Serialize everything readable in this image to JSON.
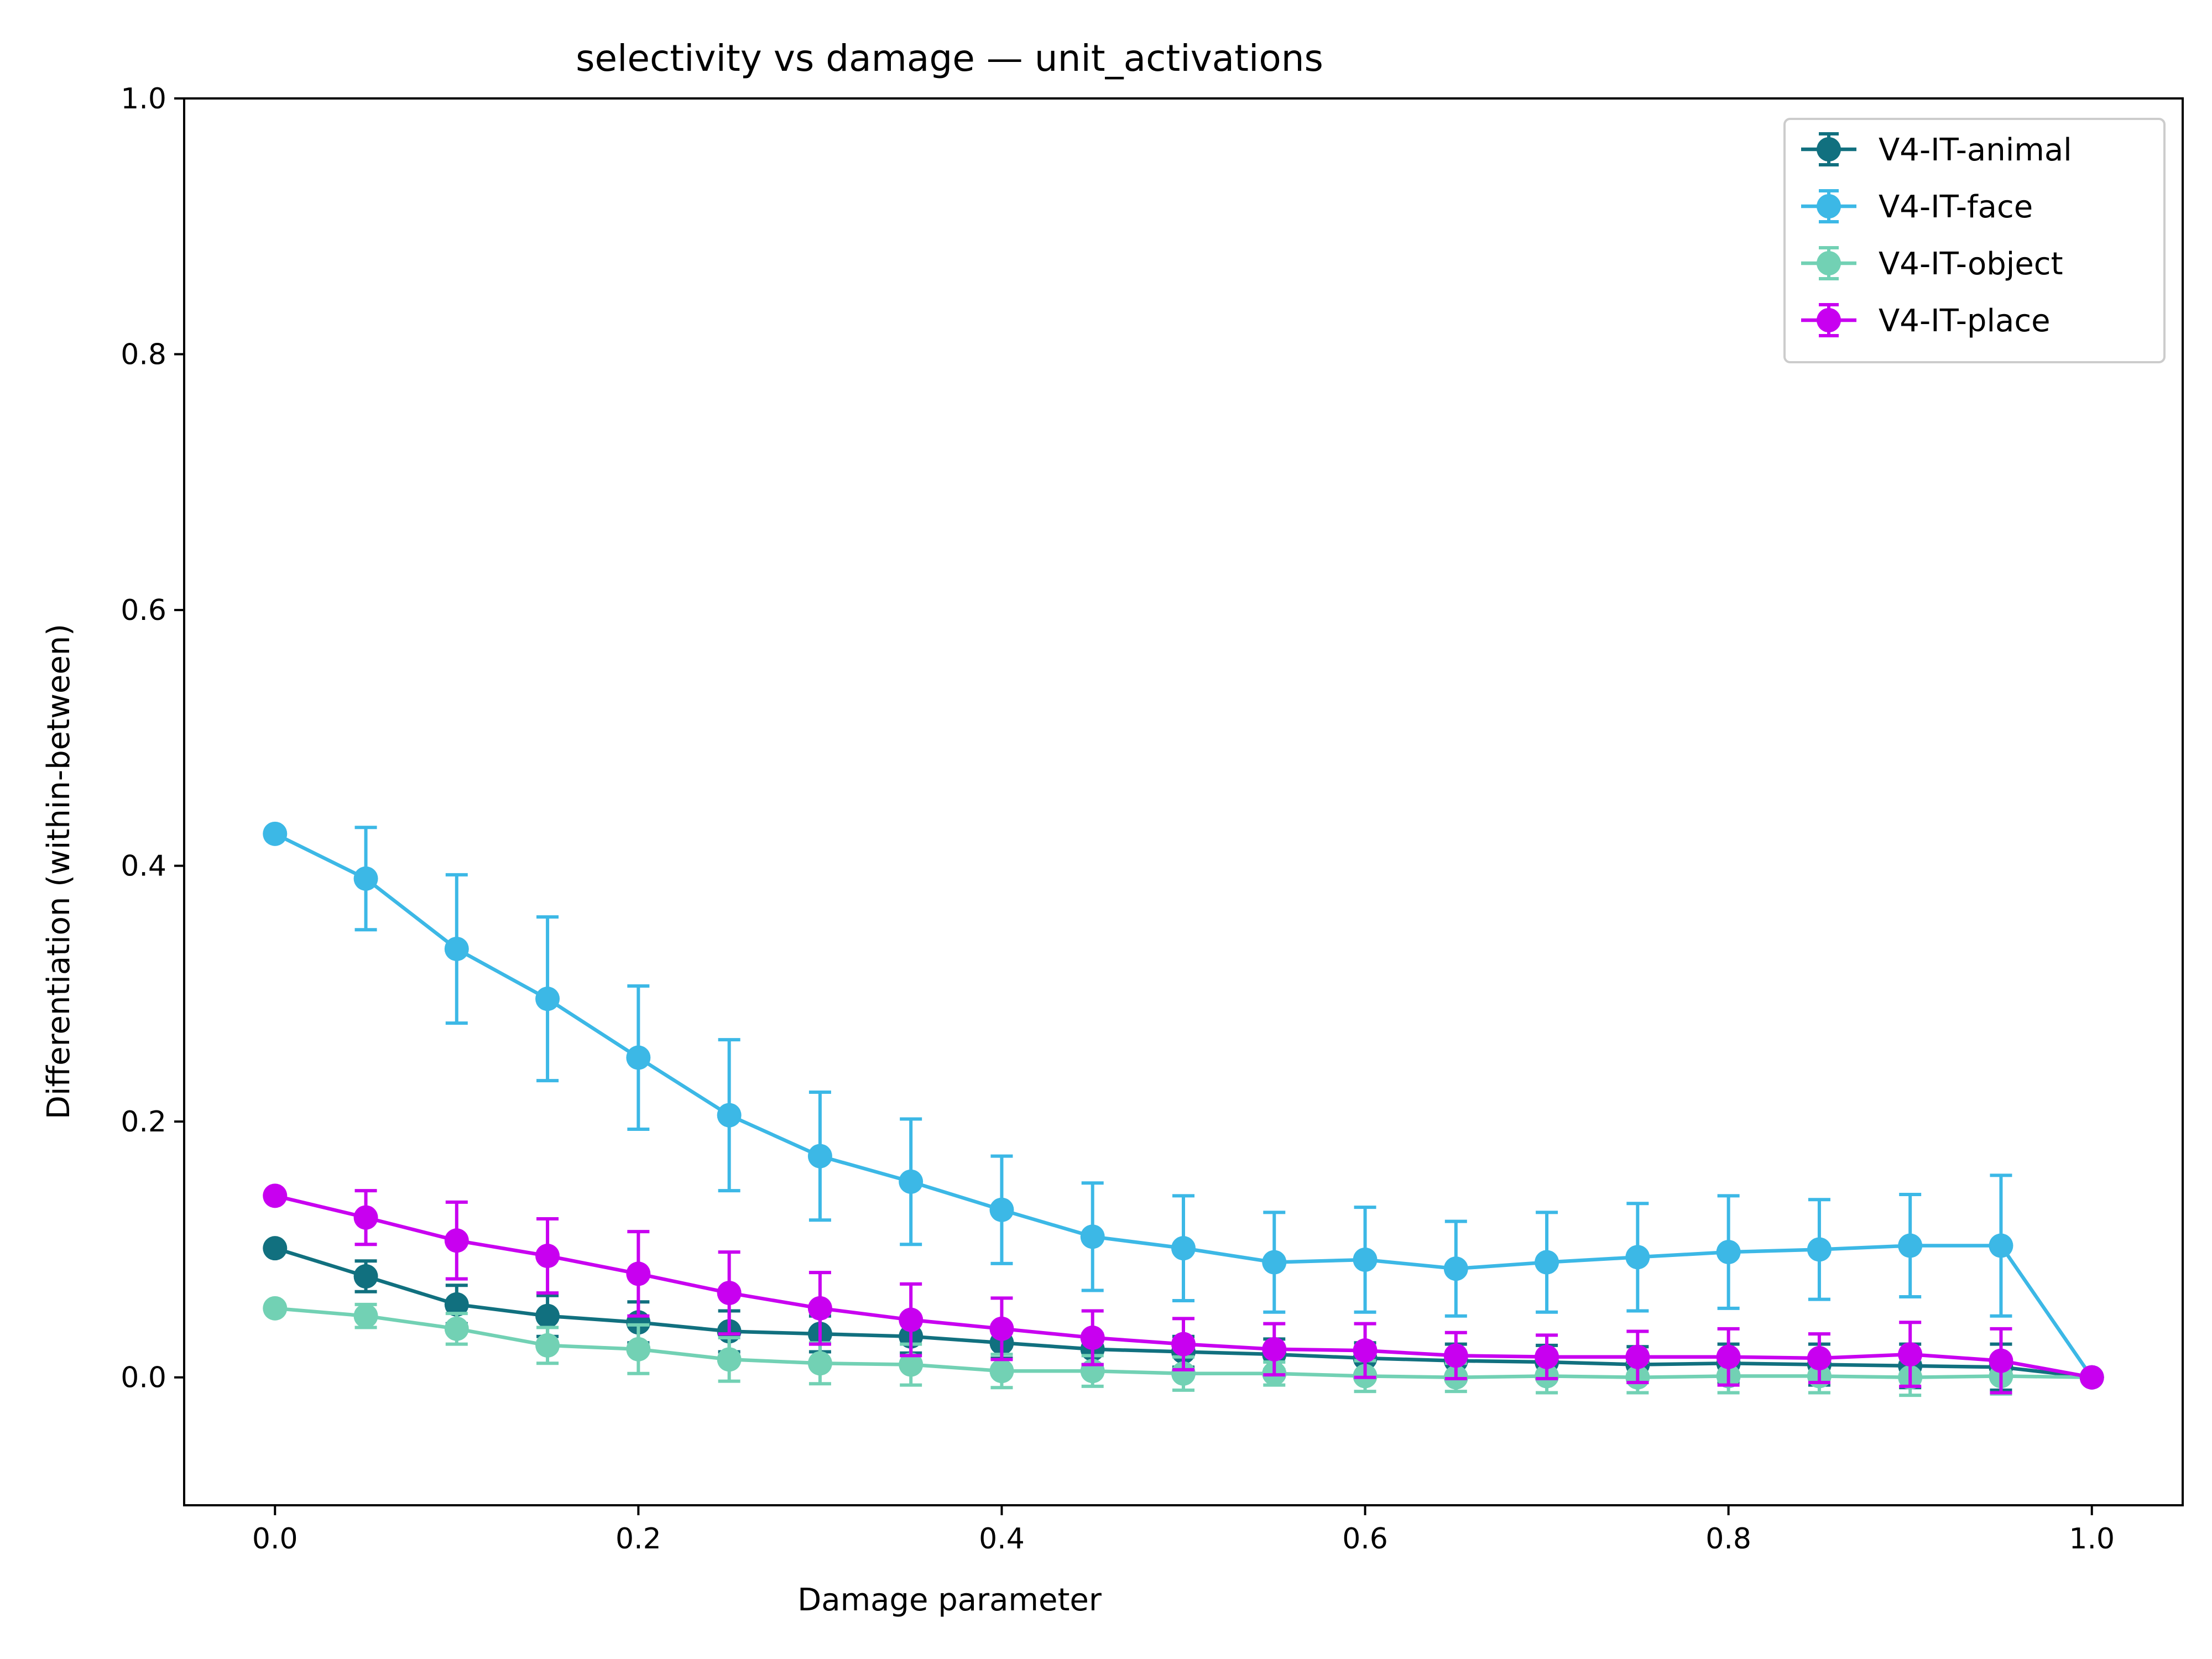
{
  "chart_data": {
    "type": "line",
    "title": "selectivity vs damage — unit_activations",
    "xlabel": "Damage parameter",
    "ylabel": "Differentiation (within-between)",
    "xlim": [
      -0.05,
      1.05
    ],
    "ylim": [
      -0.1,
      1.0
    ],
    "xticks": [
      "0.0",
      "0.2",
      "0.4",
      "0.6",
      "0.8",
      "1.0"
    ],
    "yticks": [
      "0.0",
      "0.2",
      "0.4",
      "0.6",
      "0.8",
      "1.0"
    ],
    "grid": false,
    "legend_position": "top-right",
    "x": [
      0.0,
      0.05,
      0.1,
      0.15,
      0.2,
      0.25,
      0.3,
      0.35,
      0.4,
      0.45,
      0.5,
      0.55,
      0.6,
      0.65,
      0.7,
      0.75,
      0.8,
      0.85,
      0.9,
      0.95,
      1.0
    ],
    "series": [
      {
        "name": "V4-IT-animal",
        "color": "#11707f",
        "values": [
          0.101,
          0.079,
          0.057,
          0.048,
          0.043,
          0.036,
          0.034,
          0.032,
          0.027,
          0.022,
          0.02,
          0.018,
          0.015,
          0.013,
          0.012,
          0.01,
          0.011,
          0.01,
          0.009,
          0.008,
          0.0
        ],
        "errors": [
          0.0,
          0.012,
          0.015,
          0.016,
          0.016,
          0.016,
          0.014,
          0.013,
          0.012,
          0.012,
          0.012,
          0.012,
          0.012,
          0.013,
          0.013,
          0.014,
          0.015,
          0.016,
          0.017,
          0.018,
          0.0
        ]
      },
      {
        "name": "V4-IT-face",
        "color": "#3cb8e6",
        "values": [
          0.425,
          0.39,
          0.335,
          0.296,
          0.25,
          0.205,
          0.173,
          0.153,
          0.131,
          0.11,
          0.101,
          0.09,
          0.092,
          0.085,
          0.09,
          0.094,
          0.098,
          0.1,
          0.103,
          0.103,
          0.0
        ],
        "errors": [
          0.0,
          0.04,
          0.058,
          0.064,
          0.056,
          0.059,
          0.05,
          0.049,
          0.042,
          0.042,
          0.041,
          0.039,
          0.041,
          0.037,
          0.039,
          0.042,
          0.044,
          0.039,
          0.04,
          0.055,
          0.0
        ]
      },
      {
        "name": "V4-IT-object",
        "color": "#72d1b4",
        "values": [
          0.054,
          0.048,
          0.038,
          0.025,
          0.022,
          0.014,
          0.011,
          0.01,
          0.005,
          0.005,
          0.003,
          0.003,
          0.001,
          0.0,
          0.001,
          0.0,
          0.001,
          0.001,
          0.0,
          0.001,
          0.0
        ],
        "errors": [
          0.0,
          0.009,
          0.012,
          0.014,
          0.019,
          0.017,
          0.016,
          0.016,
          0.013,
          0.012,
          0.013,
          0.009,
          0.012,
          0.011,
          0.013,
          0.012,
          0.013,
          0.013,
          0.014,
          0.014,
          0.0
        ]
      },
      {
        "name": "V4-IT-place",
        "color": "#c800f0",
        "values": [
          0.142,
          0.125,
          0.107,
          0.095,
          0.081,
          0.066,
          0.054,
          0.045,
          0.038,
          0.031,
          0.026,
          0.022,
          0.021,
          0.017,
          0.016,
          0.016,
          0.016,
          0.015,
          0.018,
          0.013,
          0.0
        ],
        "errors": [
          0.0,
          0.021,
          0.03,
          0.029,
          0.033,
          0.032,
          0.028,
          0.028,
          0.024,
          0.021,
          0.02,
          0.02,
          0.021,
          0.018,
          0.017,
          0.02,
          0.022,
          0.019,
          0.025,
          0.025,
          0.0
        ]
      }
    ]
  }
}
